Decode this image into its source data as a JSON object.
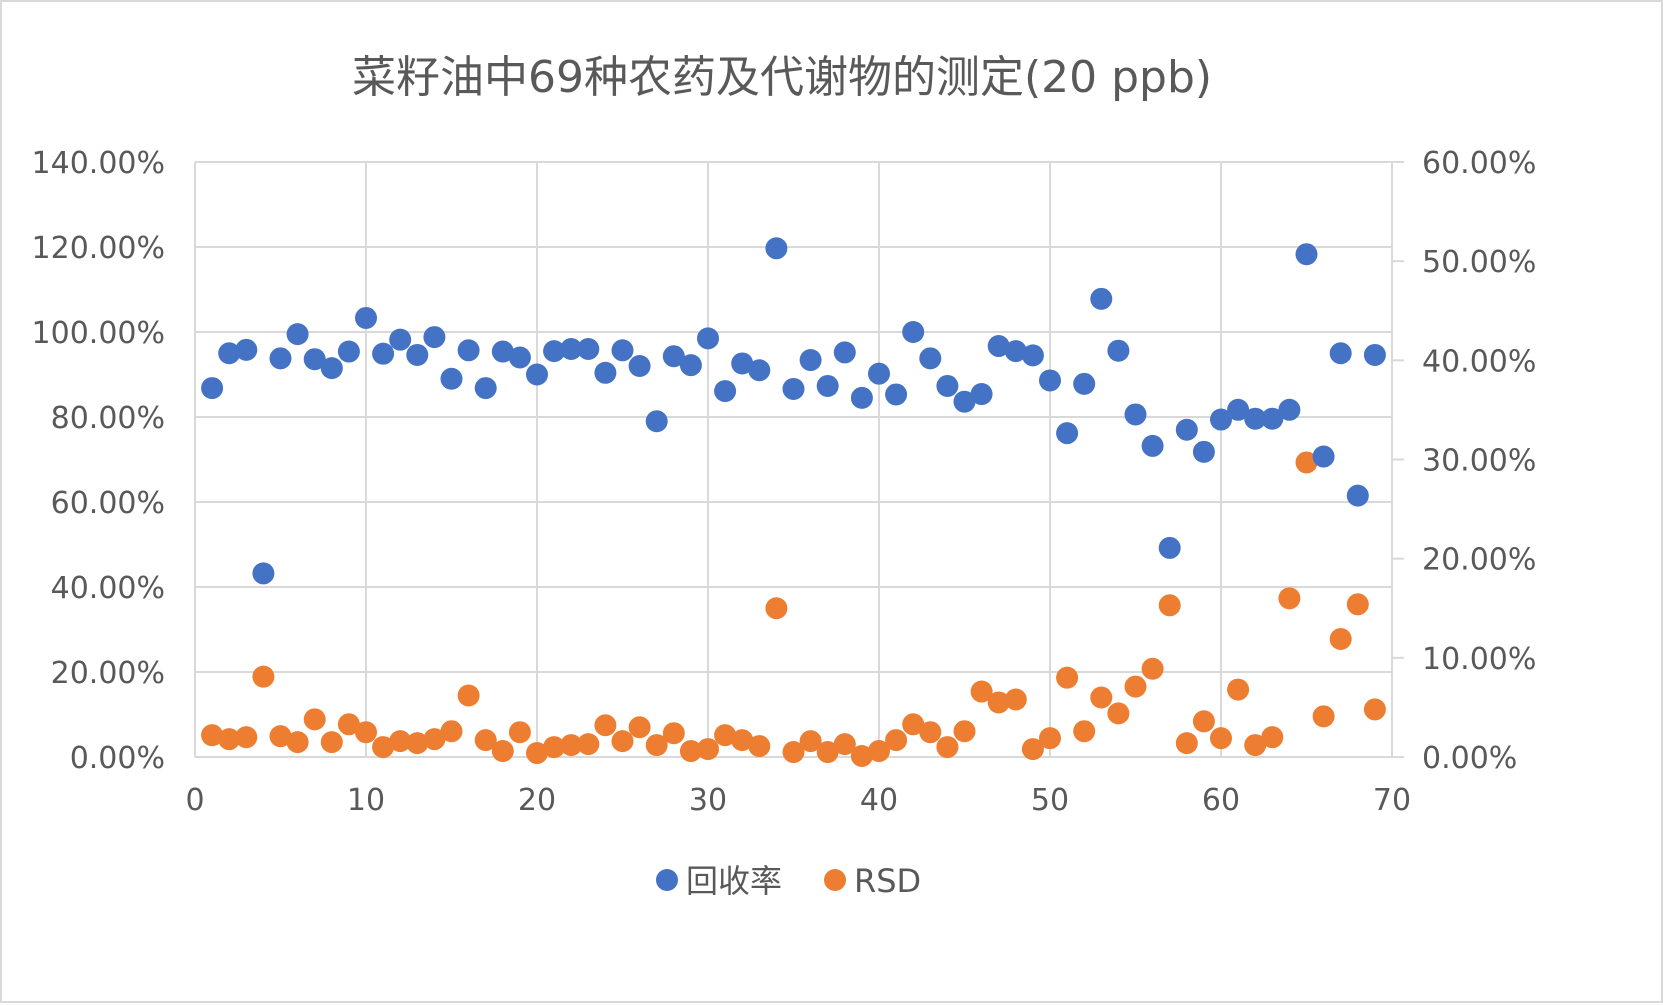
{
  "chart_data": {
    "type": "scatter",
    "title": "菜籽油中69种农药及代谢物的测定(20 ppb)",
    "xlabel": "",
    "ylabel": "",
    "xlim": [
      0,
      70
    ],
    "ylim": [
      0,
      140
    ],
    "y2lim": [
      0,
      60
    ],
    "x_ticks": [
      "0",
      "10",
      "20",
      "30",
      "40",
      "50",
      "60",
      "70"
    ],
    "y_ticks": [
      "0.00%",
      "20.00%",
      "40.00%",
      "60.00%",
      "80.00%",
      "100.00%",
      "120.00%",
      "140.00%"
    ],
    "y2_ticks": [
      "0.00%",
      "10.00%",
      "20.00%",
      "30.00%",
      "40.00%",
      "50.00%",
      "60.00%"
    ],
    "grid": true,
    "legend_position": "bottom",
    "colors": {
      "recovery": "#4472c4",
      "rsd": "#ed7d31",
      "grid": "#d9d9d9",
      "text": "#595959"
    },
    "series": [
      {
        "name": "回收率",
        "axis": "left",
        "x": [
          1,
          2,
          3,
          4,
          5,
          6,
          7,
          8,
          9,
          10,
          11,
          12,
          13,
          14,
          15,
          16,
          17,
          18,
          19,
          20,
          21,
          22,
          23,
          24,
          25,
          26,
          27,
          28,
          29,
          30,
          31,
          32,
          33,
          34,
          35,
          36,
          37,
          38,
          39,
          40,
          41,
          42,
          43,
          44,
          45,
          46,
          47,
          48,
          49,
          50,
          51,
          52,
          53,
          54,
          55,
          56,
          57,
          58,
          59,
          60,
          61,
          62,
          63,
          64,
          65,
          66,
          67,
          68,
          69
        ],
        "values": [
          86.8,
          95.0,
          95.8,
          43.2,
          93.8,
          99.5,
          93.6,
          91.5,
          95.4,
          103.3,
          94.9,
          98.2,
          94.6,
          98.8,
          89.0,
          95.7,
          86.8,
          95.4,
          94.0,
          90.0,
          95.5,
          96.0,
          96.0,
          90.4,
          95.7,
          92.0,
          79.0,
          94.3,
          92.2,
          98.5,
          86.1,
          92.6,
          91.0,
          119.7,
          86.6,
          93.4,
          87.3,
          95.2,
          84.5,
          90.2,
          85.3,
          100.0,
          93.8,
          87.3,
          83.6,
          85.4,
          96.7,
          95.5,
          94.5,
          88.6,
          76.2,
          87.8,
          107.8,
          95.6,
          80.6,
          73.2,
          49.2,
          77.0,
          71.8,
          79.4,
          81.7,
          79.6,
          79.6,
          81.7,
          118.3,
          70.7,
          95.0,
          61.5,
          94.6
        ]
      },
      {
        "name": "RSD",
        "axis": "right",
        "x": [
          1,
          2,
          3,
          4,
          5,
          6,
          7,
          8,
          9,
          10,
          11,
          12,
          13,
          14,
          15,
          16,
          17,
          18,
          19,
          20,
          21,
          22,
          23,
          24,
          25,
          26,
          27,
          28,
          29,
          30,
          31,
          32,
          33,
          34,
          35,
          36,
          37,
          38,
          39,
          40,
          41,
          42,
          43,
          44,
          45,
          46,
          47,
          48,
          49,
          50,
          51,
          52,
          53,
          54,
          55,
          56,
          57,
          58,
          59,
          60,
          61,
          62,
          63,
          64,
          65,
          66,
          67,
          68,
          69
        ],
        "values": [
          2.2,
          1.8,
          2.0,
          8.1,
          2.1,
          1.5,
          3.8,
          1.5,
          3.3,
          2.5,
          1.0,
          1.6,
          1.4,
          1.8,
          2.6,
          6.2,
          1.7,
          0.6,
          2.5,
          0.4,
          1.0,
          1.2,
          1.3,
          3.2,
          1.6,
          3.0,
          1.2,
          2.4,
          0.6,
          0.8,
          2.2,
          1.7,
          1.1,
          15.0,
          0.5,
          1.6,
          0.5,
          1.3,
          0.1,
          0.6,
          1.7,
          3.3,
          2.5,
          1.0,
          2.6,
          6.6,
          5.5,
          5.8,
          0.8,
          1.9,
          8.0,
          2.6,
          6.0,
          4.4,
          7.1,
          8.9,
          15.3,
          1.4,
          3.6,
          1.9,
          6.8,
          1.2,
          2.0,
          16.0,
          29.7,
          4.1,
          11.9,
          15.4,
          4.8
        ]
      }
    ]
  }
}
